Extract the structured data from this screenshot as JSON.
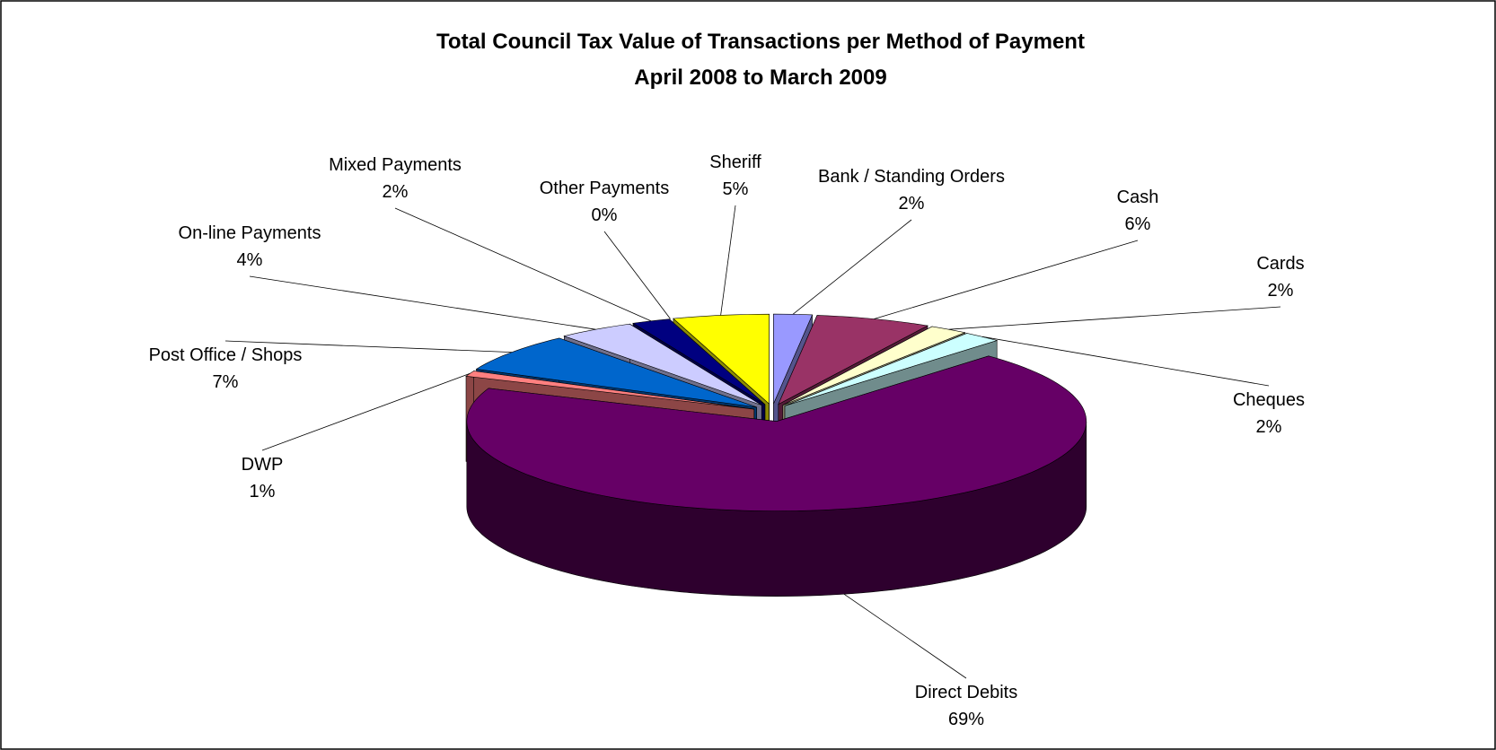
{
  "chart_data": {
    "type": "pie",
    "title": "Total Council Tax Value of Transactions per Method of Payment",
    "subtitle": "April 2008 to March 2009",
    "categories": [
      "Bank / Standing Orders",
      "Cash",
      "Cards",
      "Cheques",
      "Direct Debits",
      "DWP",
      "Post Office / Shops",
      "On-line Payments",
      "Mixed Payments",
      "Other Payments",
      "Sheriff"
    ],
    "values": [
      2,
      6,
      2,
      2,
      69,
      1,
      7,
      4,
      2,
      0,
      5
    ],
    "value_labels": [
      "2%",
      "6%",
      "2%",
      "2%",
      "69%",
      "1%",
      "7%",
      "4%",
      "2%",
      "0%",
      "5%"
    ],
    "colors": [
      "#9999ff",
      "#993366",
      "#ffffcc",
      "#ccffff",
      "#660066",
      "#ff8080",
      "#0066cc",
      "#ccccff",
      "#000080",
      "#ff00ff",
      "#ffff00"
    ]
  }
}
